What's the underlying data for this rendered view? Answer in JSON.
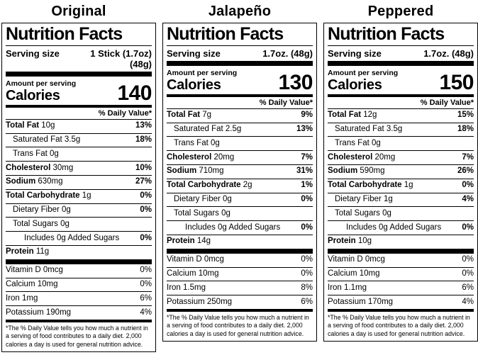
{
  "columns": [
    {
      "title": "Original",
      "label": {
        "heading": "Nutrition Facts",
        "serving": {
          "label": "Serving size",
          "value": "1 Stick (1.7oz)\n(48g)"
        },
        "amount_per_serving": "Amount per serving",
        "calories_word": "Calories",
        "calories": "140",
        "dv_header": "% Daily Value*",
        "nutrients": [
          {
            "name": "Total Fat",
            "amount": "10g",
            "dv": "13%",
            "indent": 0,
            "bold": true
          },
          {
            "name": "Saturated Fat",
            "amount": "3.5g",
            "dv": "18%",
            "indent": 1,
            "bold": false
          },
          {
            "name": "Trans Fat",
            "amount": "0g",
            "dv": "",
            "indent": 1,
            "bold": false
          },
          {
            "name": "Cholesterol",
            "amount": "30mg",
            "dv": "10%",
            "indent": 0,
            "bold": true
          },
          {
            "name": "Sodium",
            "amount": "630mg",
            "dv": "27%",
            "indent": 0,
            "bold": true
          },
          {
            "name": "Total Carbohydrate",
            "amount": "1g",
            "dv": "0%",
            "indent": 0,
            "bold": true
          },
          {
            "name": "Dietary Fiber",
            "amount": "0g",
            "dv": "0%",
            "indent": 1,
            "bold": false
          },
          {
            "name": "Total Sugars",
            "amount": "0g",
            "dv": "",
            "indent": 1,
            "bold": false
          },
          {
            "name": "Includes 0g Added Sugars",
            "amount": "",
            "dv": "0%",
            "indent": 2,
            "bold": false
          },
          {
            "name": "Protein",
            "amount": "11g",
            "dv": "",
            "indent": 0,
            "bold": true
          }
        ],
        "vitamins": [
          {
            "name": "Vitamin D",
            "amount": "0mcg",
            "dv": "0%",
            "indent": 0,
            "bold": false
          },
          {
            "name": "Calcium",
            "amount": "10mg",
            "dv": "0%",
            "indent": 0,
            "bold": false
          },
          {
            "name": "Iron",
            "amount": "1mg",
            "dv": "6%",
            "indent": 0,
            "bold": false
          },
          {
            "name": "Potassium",
            "amount": "190mg",
            "dv": "4%",
            "indent": 0,
            "bold": false
          }
        ],
        "footnote": "*The % Daily Value tells you how much a nutrient in a serving of food contributes to a daily diet. 2,000 calories a day is used for general nutrition advice."
      }
    },
    {
      "title": "Jalapeño",
      "label": {
        "heading": "Nutrition Facts",
        "serving": {
          "label": "Serving size",
          "value": "1.7oz. (48g)"
        },
        "amount_per_serving": "Amount per serving",
        "calories_word": "Calories",
        "calories": "130",
        "dv_header": "% Daily Value*",
        "nutrients": [
          {
            "name": "Total Fat",
            "amount": "7g",
            "dv": "9%",
            "indent": 0,
            "bold": true
          },
          {
            "name": "Saturated Fat",
            "amount": "2.5g",
            "dv": "13%",
            "indent": 1,
            "bold": false
          },
          {
            "name": "Trans Fat",
            "amount": "0g",
            "dv": "",
            "indent": 1,
            "bold": false
          },
          {
            "name": "Cholesterol",
            "amount": "20mg",
            "dv": "7%",
            "indent": 0,
            "bold": true
          },
          {
            "name": "Sodium",
            "amount": "710mg",
            "dv": "31%",
            "indent": 0,
            "bold": true
          },
          {
            "name": "Total Carbohydrate",
            "amount": "2g",
            "dv": "1%",
            "indent": 0,
            "bold": true
          },
          {
            "name": "Dietary Fiber",
            "amount": "0g",
            "dv": "0%",
            "indent": 1,
            "bold": false
          },
          {
            "name": "Total Sugars",
            "amount": "0g",
            "dv": "",
            "indent": 1,
            "bold": false
          },
          {
            "name": "Includes 0g Added Sugars",
            "amount": "",
            "dv": "0%",
            "indent": 2,
            "bold": false
          },
          {
            "name": "Protein",
            "amount": "14g",
            "dv": "",
            "indent": 0,
            "bold": true
          }
        ],
        "vitamins": [
          {
            "name": "Vitamin D",
            "amount": "0mcg",
            "dv": "0%",
            "indent": 0,
            "bold": false
          },
          {
            "name": "Calcium",
            "amount": "10mg",
            "dv": "0%",
            "indent": 0,
            "bold": false
          },
          {
            "name": "Iron",
            "amount": "1.5mg",
            "dv": "8%",
            "indent": 0,
            "bold": false
          },
          {
            "name": "Potassium",
            "amount": "250mg",
            "dv": "6%",
            "indent": 0,
            "bold": false
          }
        ],
        "footnote": "*The % Daily Value tells you how much a nutrient in a serving of food contributes to a daily diet. 2,000 calories a day is used for general nutrition advice."
      }
    },
    {
      "title": "Peppered",
      "label": {
        "heading": "Nutrition Facts",
        "serving": {
          "label": "Serving size",
          "value": "1.7oz. (48g)"
        },
        "amount_per_serving": "Amount per serving",
        "calories_word": "Calories",
        "calories": "150",
        "dv_header": "% Daily Value*",
        "nutrients": [
          {
            "name": "Total Fat",
            "amount": "12g",
            "dv": "15%",
            "indent": 0,
            "bold": true
          },
          {
            "name": "Saturated Fat",
            "amount": "3.5g",
            "dv": "18%",
            "indent": 1,
            "bold": false
          },
          {
            "name": "Trans Fat",
            "amount": "0g",
            "dv": "",
            "indent": 1,
            "bold": false
          },
          {
            "name": "Cholesterol",
            "amount": "20mg",
            "dv": "7%",
            "indent": 0,
            "bold": true
          },
          {
            "name": "Sodium",
            "amount": "590mg",
            "dv": "26%",
            "indent": 0,
            "bold": true
          },
          {
            "name": "Total Carbohydrate",
            "amount": "1g",
            "dv": "0%",
            "indent": 0,
            "bold": true
          },
          {
            "name": "Dietary Fiber",
            "amount": "1g",
            "dv": "4%",
            "indent": 1,
            "bold": false
          },
          {
            "name": "Total Sugars",
            "amount": "0g",
            "dv": "",
            "indent": 1,
            "bold": false
          },
          {
            "name": "Includes 0g Added Sugars",
            "amount": "",
            "dv": "0%",
            "indent": 2,
            "bold": false
          },
          {
            "name": "Protein",
            "amount": "10g",
            "dv": "",
            "indent": 0,
            "bold": true
          }
        ],
        "vitamins": [
          {
            "name": "Vitamin D",
            "amount": "0mcg",
            "dv": "0%",
            "indent": 0,
            "bold": false
          },
          {
            "name": "Calcium",
            "amount": "10mg",
            "dv": "0%",
            "indent": 0,
            "bold": false
          },
          {
            "name": "Iron",
            "amount": "1.1mg",
            "dv": "6%",
            "indent": 0,
            "bold": false
          },
          {
            "name": "Potassium",
            "amount": "170mg",
            "dv": "4%",
            "indent": 0,
            "bold": false
          }
        ],
        "footnote": "*The % Daily Value tells you how much a nutrient in a serving of food contributes to a daily diet. 2,000 calories a day is used for general nutrition advice."
      }
    }
  ],
  "colors": {
    "ink": "#000000",
    "background": "#ffffff"
  }
}
